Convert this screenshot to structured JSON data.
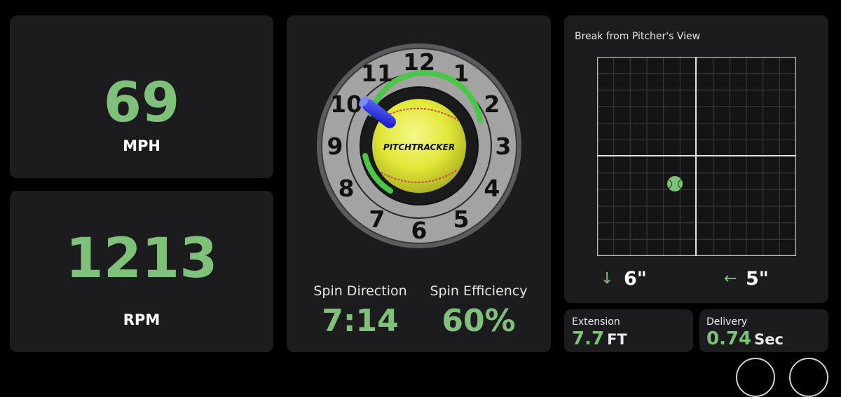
{
  "speed": {
    "value": "69",
    "unit": "MPH"
  },
  "spin_rate": {
    "value": "1213",
    "unit": "RPM"
  },
  "clock": {
    "numbers": [
      "12",
      "1",
      "2",
      "3",
      "4",
      "5",
      "6",
      "7",
      "8",
      "9",
      "10",
      "11"
    ],
    "ball_brand": "PITCHTRACKER"
  },
  "spin_direction": {
    "label": "Spin Direction",
    "value": "7:14"
  },
  "spin_efficiency": {
    "label": "Spin Efficiency",
    "value": "60%"
  },
  "break_chart": {
    "title": "Break from Pitcher's View",
    "vertical_arrow": "↓",
    "vertical_value": "6\"",
    "horizontal_arrow": "←",
    "horizontal_value": "5\""
  },
  "extension": {
    "label": "Extension",
    "value": "7.7",
    "unit": "FT"
  },
  "delivery": {
    "label": "Delivery",
    "value": "0.74",
    "unit": "Sec"
  },
  "colors": {
    "accent_green": "#7fc17a",
    "card_bg": "#1c1c1e",
    "ball_yellow": "#e4ea3c",
    "axis_blue": "#1a1ae0"
  }
}
